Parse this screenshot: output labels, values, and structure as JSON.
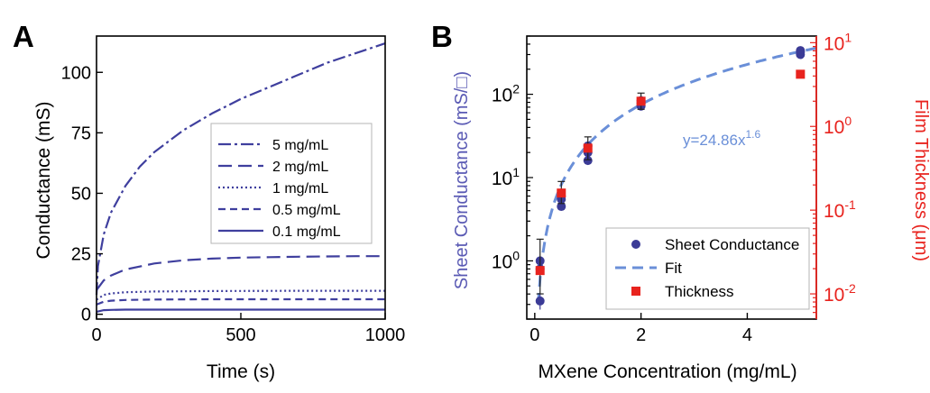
{
  "chart_data": [
    {
      "panel_label": "A",
      "type": "line",
      "xlabel": "Time (s)",
      "ylabel": "Conductance (mS)",
      "xlim": [
        0,
        1000
      ],
      "ylim": [
        -2,
        115
      ],
      "xticks": [
        0,
        500,
        1000
      ],
      "yticks": [
        0,
        25,
        50,
        75,
        100
      ],
      "xtick_labels": [
        "0",
        "500",
        "1000"
      ],
      "ytick_labels": [
        "0",
        "25",
        "50",
        "75",
        "100"
      ],
      "grid": false,
      "legend_position": "center-right",
      "series": [
        {
          "name": "5 mg/mL",
          "dash": "dashdot",
          "x": [
            0,
            5,
            25,
            50,
            100,
            150,
            200,
            300,
            400,
            500,
            600,
            700,
            800,
            900,
            1000
          ],
          "y": [
            8,
            20,
            33,
            42,
            53,
            61,
            67,
            76,
            83,
            89,
            94,
            99,
            104,
            108,
            112
          ]
        },
        {
          "name": "2 mg/mL",
          "dash": "dashed-long",
          "x": [
            0,
            25,
            50,
            100,
            200,
            300,
            400,
            500,
            600,
            700,
            800,
            900,
            1000
          ],
          "y": [
            10,
            14,
            16,
            18.5,
            21,
            22.3,
            23,
            23.4,
            23.6,
            23.8,
            23.9,
            24,
            24
          ]
        },
        {
          "name": "1 mg/mL",
          "dash": "dotted",
          "x": [
            0,
            25,
            50,
            100,
            200,
            400,
            700,
            1000
          ],
          "y": [
            6,
            8,
            8.6,
            9.1,
            9.4,
            9.6,
            9.7,
            9.7
          ]
        },
        {
          "name": "0.5 mg/mL",
          "dash": "dashed",
          "x": [
            0,
            25,
            50,
            100,
            200,
            400,
            700,
            1000
          ],
          "y": [
            4,
            5.2,
            5.6,
            5.9,
            6.1,
            6.2,
            6.2,
            6.2
          ]
        },
        {
          "name": "0.1 mg/mL",
          "dash": "solid",
          "x": [
            0,
            25,
            50,
            100,
            300,
            1000
          ],
          "y": [
            1,
            1.7,
            1.8,
            1.9,
            1.9,
            1.9
          ]
        }
      ]
    },
    {
      "panel_label": "B",
      "type": "scatter",
      "xlabel": "MXene Concentration (mg/mL)",
      "ylabel": "Sheet Conductance (mS/□)",
      "y2label": "Film Thickness (μm)",
      "xlim": [
        -0.15,
        5.3
      ],
      "ylim": [
        0.2,
        500
      ],
      "y2lim": [
        0.005,
        12
      ],
      "yscale": "log",
      "y2scale": "log",
      "xticks": [
        0,
        2,
        4
      ],
      "xtick_labels": [
        "0",
        "2",
        "4"
      ],
      "yticks": [
        1,
        10,
        100
      ],
      "ytick_labels": [
        {
          "base": "10",
          "exp": "0"
        },
        {
          "base": "10",
          "exp": "1"
        },
        {
          "base": "10",
          "exp": "2"
        }
      ],
      "y2ticks": [
        0.01,
        0.1,
        1,
        10
      ],
      "y2tick_labels": [
        {
          "base": "10",
          "exp": "-2"
        },
        {
          "base": "10",
          "exp": "-1"
        },
        {
          "base": "10",
          "exp": "0"
        },
        {
          "base": "10",
          "exp": "1"
        }
      ],
      "grid": false,
      "legend_position": "bottom-right",
      "annotation": {
        "text": "y=24.86x",
        "sup": "1.6"
      },
      "fit": {
        "name": "Fit",
        "coef": 24.86,
        "exponent": 1.6
      },
      "series": [
        {
          "name": "Sheet Conductance",
          "marker": "circle",
          "axis": "left",
          "points": [
            {
              "x": 0.1,
              "y": 0.33,
              "err": 0.07
            },
            {
              "x": 0.1,
              "y": 0.8
            },
            {
              "x": 0.1,
              "y": 1.0
            },
            {
              "x": 0.5,
              "y": 4.5
            },
            {
              "x": 0.5,
              "y": 5.5
            },
            {
              "x": 0.5,
              "y": 6.0
            },
            {
              "x": 1.0,
              "y": 16
            },
            {
              "x": 1.0,
              "y": 20
            },
            {
              "x": 1.0,
              "y": 24
            },
            {
              "x": 2.0,
              "y": 72
            },
            {
              "x": 2.0,
              "y": 78
            },
            {
              "x": 2.0,
              "y": 84
            },
            {
              "x": 5.0,
              "y": 300
            },
            {
              "x": 5.0,
              "y": 320
            },
            {
              "x": 5.0,
              "y": 335
            }
          ]
        },
        {
          "name": "Thickness",
          "marker": "square",
          "axis": "right",
          "points": [
            {
              "x": 0.1,
              "y": 0.019,
              "err_lo": 0.009,
              "err_hi": 0.026
            },
            {
              "x": 0.5,
              "y": 0.16,
              "err_lo": 0.04,
              "err_hi": 0.06
            },
            {
              "x": 1.0,
              "y": 0.55,
              "err_lo": 0.15,
              "err_hi": 0.2
            },
            {
              "x": 2.0,
              "y": 2.0,
              "err_lo": 0.4,
              "err_hi": 0.5
            },
            {
              "x": 5.0,
              "y": 4.2,
              "err_lo": 0.4,
              "err_hi": 0.4
            }
          ]
        }
      ]
    }
  ],
  "colors": {
    "panelA_lines": "#3f3f9e",
    "conductance_points": "#3b3b96",
    "fit_line": "#6a8fd8",
    "thickness_points": "#e8231e",
    "left_axis_label_B": "#5a5ab4",
    "right_axis": "#e8231e",
    "annotation": "#6a8fd8"
  }
}
